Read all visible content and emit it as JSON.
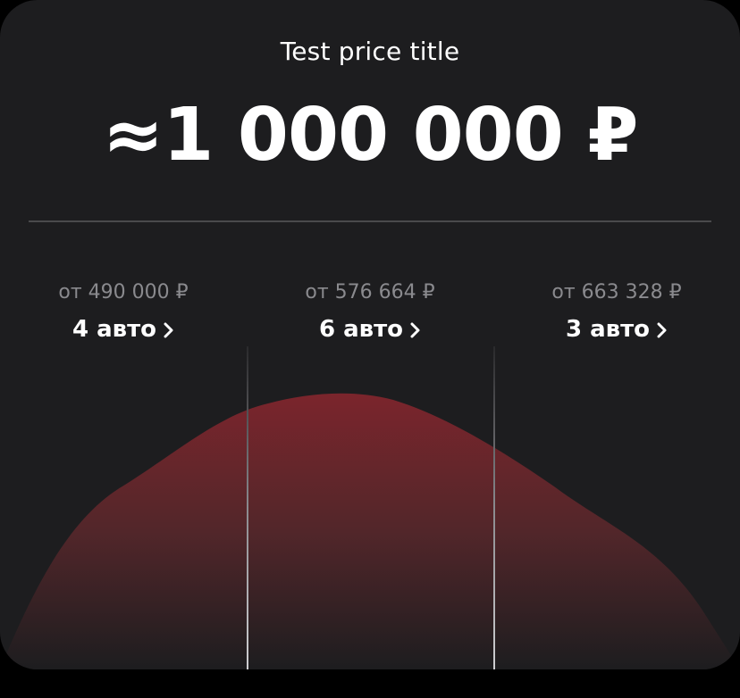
{
  "card": {
    "title": "Test price title",
    "price": "≈1 000 000 ₽"
  },
  "buckets": [
    {
      "from": "от 490 000 ₽",
      "count": "4 авто"
    },
    {
      "from": "от 576 664 ₽",
      "count": "6 авто"
    },
    {
      "from": "от 663 328 ₽",
      "count": "3 авто"
    }
  ],
  "colors": {
    "background": "#000000",
    "card": "#1d1d1f",
    "accent": "#7b252c",
    "muted_text": "#8a8a8e",
    "divider": "#4a4a4c"
  },
  "icons": {
    "bucket_link": "chevron-right-icon"
  }
}
